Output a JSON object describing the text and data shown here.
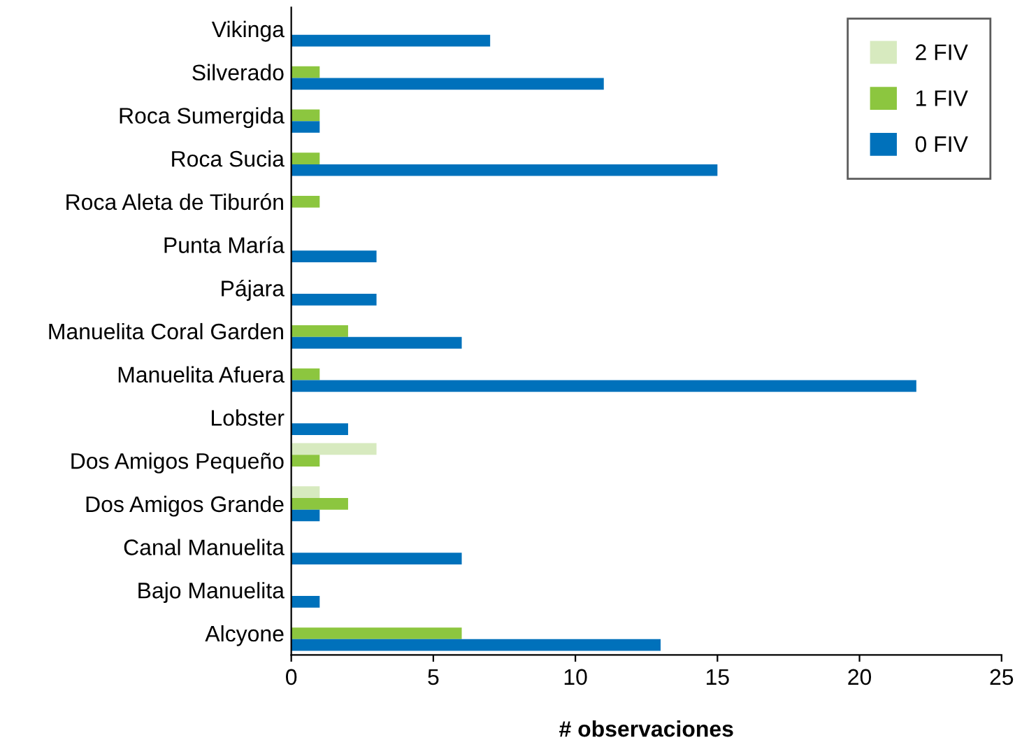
{
  "chart_data": {
    "type": "bar",
    "orientation": "horizontal",
    "xlabel": "# observaciones",
    "categories": [
      "Vikinga",
      "Silverado",
      "Roca Sumergida",
      "Roca Sucia",
      "Roca Aleta de Tiburón",
      "Punta María",
      "Pájara",
      "Manuelita Coral Garden",
      "Manuelita Afuera",
      "Lobster",
      "Dos Amigos Pequeño",
      "Dos Amigos Grande",
      "Canal Manuelita",
      "Bajo Manuelita",
      "Alcyone"
    ],
    "series": [
      {
        "name": "2 FIV",
        "color": "#d7eabf",
        "values": [
          0,
          0,
          0,
          0,
          0,
          0,
          0,
          0,
          0,
          0,
          3,
          1,
          0,
          0,
          0
        ]
      },
      {
        "name": "1 FIV",
        "color": "#8cc63f",
        "values": [
          0,
          1,
          1,
          1,
          1,
          0,
          0,
          2,
          1,
          0,
          1,
          2,
          0,
          0,
          6
        ]
      },
      {
        "name": "0 FIV",
        "color": "#0071bb",
        "values": [
          7,
          11,
          1,
          15,
          0,
          3,
          3,
          6,
          22,
          2,
          0,
          1,
          6,
          1,
          13
        ]
      }
    ],
    "xlim": [
      0,
      25
    ],
    "xticks": [
      0,
      5,
      10,
      15,
      20,
      25
    ],
    "grid": false,
    "legend": "top right"
  }
}
